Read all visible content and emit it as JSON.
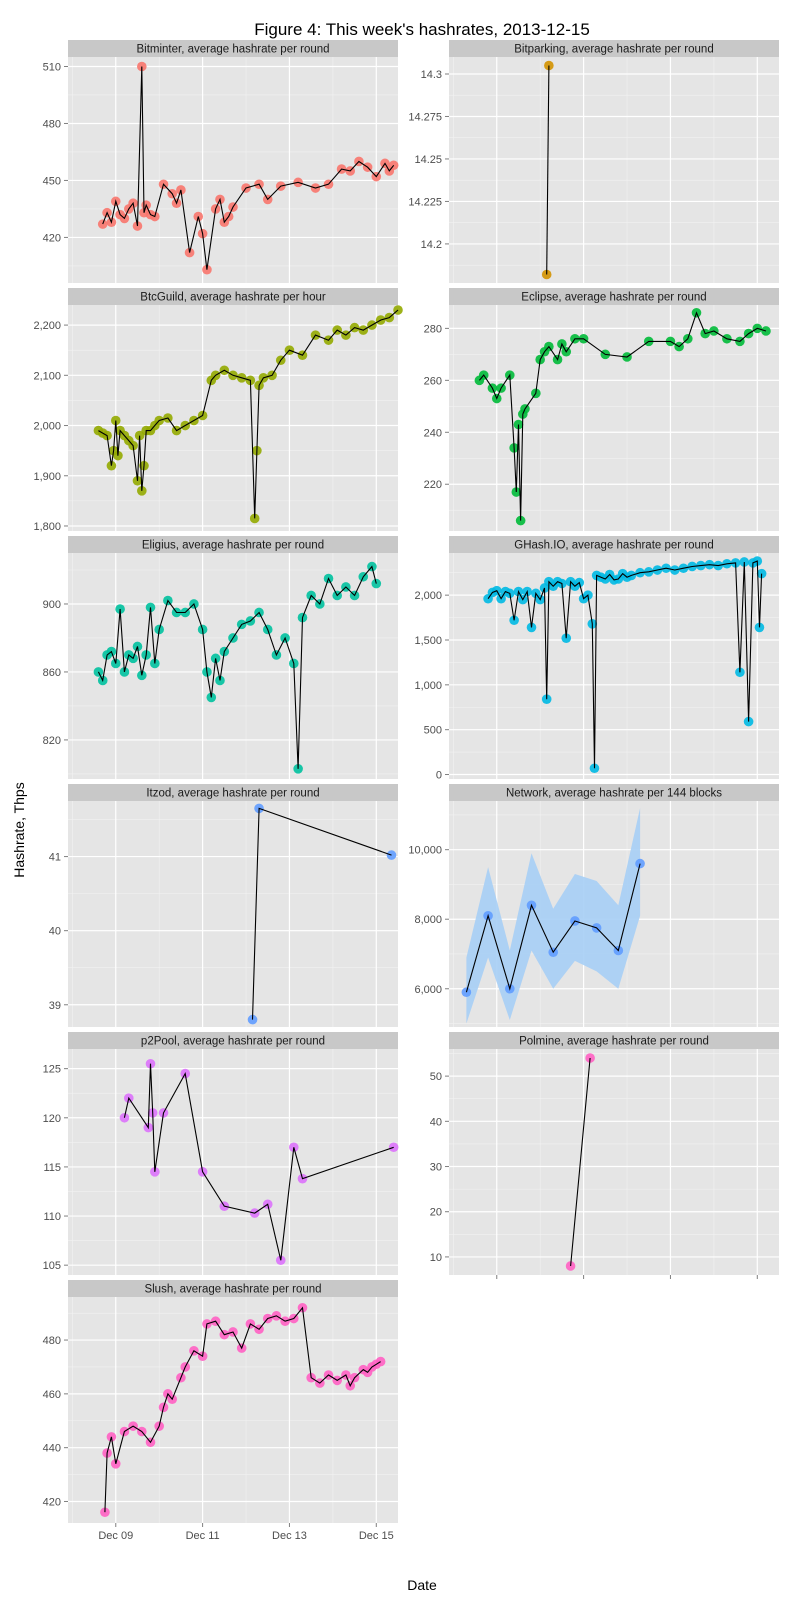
{
  "figure": {
    "title": "Figure 4: This week's hashrates, 2013-12-15",
    "xlabel": "Date",
    "ylabel": "Hashrate, Thps",
    "x_ticks": [
      "Dec 09",
      "Dec 11",
      "Dec 13",
      "Dec 15"
    ]
  },
  "chart_data": [
    {
      "type": "line",
      "title": "Bitminter, average hashrate per round",
      "color": "#F8766D",
      "xlim": [
        7.9,
        15.5
      ],
      "ylim": [
        396,
        515
      ],
      "yticks": [
        420,
        450,
        480,
        510
      ],
      "series": [
        {
          "x": [
            8.7,
            8.8,
            8.9,
            9.0,
            9.1,
            9.2,
            9.3,
            9.4,
            9.5,
            9.6,
            9.65,
            9.7,
            9.8,
            9.9,
            10.1,
            10.3,
            10.4,
            10.5,
            10.7,
            10.9,
            11.0,
            11.1,
            11.3,
            11.4,
            11.5,
            11.6,
            11.7,
            12.0,
            12.3,
            12.5,
            12.8,
            13.2,
            13.6,
            13.9,
            14.2,
            14.4,
            14.6,
            14.8,
            15.0,
            15.2,
            15.3,
            15.4
          ],
          "y": [
            427,
            433,
            428,
            439,
            432,
            430,
            435,
            438,
            426,
            510,
            433,
            437,
            432,
            431,
            448,
            443,
            438,
            445,
            412,
            431,
            422,
            403,
            435,
            440,
            428,
            431,
            436,
            446,
            448,
            440,
            447,
            449,
            446,
            448,
            456,
            455,
            460,
            457,
            452,
            459,
            455,
            458
          ]
        }
      ]
    },
    {
      "type": "line",
      "title": "Bitparking, average hashrate per round",
      "color": "#D39200",
      "xlim": [
        7.9,
        15.5
      ],
      "ylim": [
        14.177,
        14.31
      ],
      "yticks": [
        14.2,
        14.225,
        14.25,
        14.275,
        14.3
      ],
      "series": [
        {
          "x": [
            10.15,
            10.2
          ],
          "y": [
            14.182,
            14.305
          ]
        }
      ]
    },
    {
      "type": "line",
      "title": "BtcGuild, average hashrate per hour",
      "color": "#93AA00",
      "xlim": [
        7.9,
        15.5
      ],
      "ylim": [
        1790,
        2240
      ],
      "yticks": [
        1800,
        1900,
        2000,
        2100,
        2200
      ],
      "series": [
        {
          "x": [
            8.6,
            8.7,
            8.8,
            8.9,
            8.95,
            9.0,
            9.05,
            9.1,
            9.2,
            9.3,
            9.4,
            9.5,
            9.55,
            9.6,
            9.65,
            9.7,
            9.8,
            9.9,
            10.0,
            10.2,
            10.4,
            10.6,
            10.8,
            11.0,
            11.2,
            11.3,
            11.5,
            11.7,
            11.9,
            12.1,
            12.2,
            12.25,
            12.3,
            12.4,
            12.6,
            12.8,
            13.0,
            13.3,
            13.6,
            13.9,
            14.1,
            14.3,
            14.5,
            14.7,
            14.9,
            15.1,
            15.3,
            15.5
          ],
          "y": [
            1990,
            1985,
            1980,
            1920,
            1950,
            2010,
            1940,
            1990,
            1980,
            1970,
            1960,
            1890,
            1980,
            1870,
            1920,
            1990,
            1990,
            2000,
            2010,
            2015,
            1990,
            2000,
            2010,
            2020,
            2090,
            2100,
            2110,
            2100,
            2095,
            2090,
            1815,
            1950,
            2080,
            2095,
            2100,
            2130,
            2150,
            2140,
            2180,
            2170,
            2190,
            2180,
            2195,
            2190,
            2200,
            2210,
            2215,
            2230
          ]
        }
      ]
    },
    {
      "type": "line",
      "title": "Eclipse, average hashrate per round",
      "color": "#00BA38",
      "xlim": [
        7.9,
        15.5
      ],
      "ylim": [
        202,
        289
      ],
      "yticks": [
        220,
        240,
        260,
        280
      ],
      "series": [
        {
          "x": [
            8.6,
            8.7,
            8.9,
            9.0,
            9.1,
            9.3,
            9.4,
            9.45,
            9.5,
            9.55,
            9.6,
            9.65,
            9.9,
            10.0,
            10.1,
            10.2,
            10.4,
            10.5,
            10.6,
            10.8,
            11.0,
            11.5,
            12.0,
            12.5,
            13.0,
            13.2,
            13.4,
            13.6,
            13.8,
            14.0,
            14.3,
            14.6,
            14.8,
            15.0,
            15.2
          ],
          "y": [
            260,
            262,
            257,
            253,
            257,
            262,
            234,
            217,
            243,
            206,
            247,
            249,
            255,
            268,
            271,
            273,
            268,
            274,
            271,
            276,
            276,
            270,
            269,
            275,
            275,
            273,
            276,
            286,
            278,
            279,
            276,
            275,
            278,
            280,
            279
          ]
        }
      ]
    },
    {
      "type": "line",
      "title": "Eligius, average hashrate per round",
      "color": "#00C19F",
      "xlim": [
        7.9,
        15.5
      ],
      "ylim": [
        797,
        930
      ],
      "yticks": [
        820,
        860,
        900
      ],
      "series": [
        {
          "x": [
            8.6,
            8.7,
            8.8,
            8.9,
            9.0,
            9.1,
            9.2,
            9.3,
            9.4,
            9.5,
            9.6,
            9.7,
            9.8,
            9.9,
            10.0,
            10.2,
            10.4,
            10.6,
            10.8,
            11.0,
            11.1,
            11.2,
            11.3,
            11.4,
            11.5,
            11.7,
            11.9,
            12.1,
            12.3,
            12.5,
            12.7,
            12.9,
            13.1,
            13.2,
            13.3,
            13.5,
            13.7,
            13.9,
            14.1,
            14.3,
            14.5,
            14.7,
            14.9,
            15.0
          ],
          "y": [
            860,
            855,
            870,
            872,
            865,
            897,
            860,
            870,
            868,
            875,
            858,
            870,
            898,
            865,
            885,
            902,
            895,
            895,
            900,
            885,
            860,
            845,
            868,
            855,
            872,
            880,
            888,
            890,
            895,
            885,
            870,
            880,
            865,
            803,
            892,
            905,
            900,
            915,
            905,
            910,
            905,
            916,
            922,
            912
          ]
        }
      ]
    },
    {
      "type": "line",
      "title": "GHash.IO, average hashrate per round",
      "color": "#00B9E3",
      "xlim": [
        7.9,
        15.5
      ],
      "ylim": [
        -50,
        2470
      ],
      "yticks": [
        0,
        500,
        1000,
        1500,
        2000
      ],
      "series": [
        {
          "x": [
            8.8,
            8.9,
            9.0,
            9.1,
            9.2,
            9.3,
            9.4,
            9.5,
            9.6,
            9.7,
            9.8,
            9.9,
            10.0,
            10.1,
            10.15,
            10.2,
            10.3,
            10.4,
            10.5,
            10.6,
            10.7,
            10.8,
            10.9,
            11.0,
            11.1,
            11.2,
            11.25,
            11.3,
            11.4,
            11.5,
            11.6,
            11.7,
            11.8,
            11.9,
            12.0,
            12.1,
            12.3,
            12.5,
            12.7,
            12.9,
            13.1,
            13.3,
            13.5,
            13.7,
            13.9,
            14.1,
            14.3,
            14.5,
            14.6,
            14.7,
            14.8,
            14.9,
            15.0,
            15.05,
            15.1
          ],
          "y": [
            1960,
            2030,
            2050,
            1960,
            2040,
            2020,
            1720,
            2040,
            1950,
            2040,
            1640,
            2020,
            1950,
            2080,
            840,
            2150,
            2100,
            2150,
            2130,
            1520,
            2150,
            2100,
            2140,
            1960,
            2000,
            1680,
            70,
            2220,
            2200,
            2180,
            2230,
            2170,
            2180,
            2240,
            2200,
            2220,
            2250,
            2260,
            2280,
            2300,
            2280,
            2300,
            2320,
            2330,
            2340,
            2330,
            2350,
            2360,
            1140,
            2370,
            590,
            2360,
            2380,
            1640,
            2240
          ]
        }
      ]
    },
    {
      "type": "line",
      "title": "Itzod, average hashrate per round",
      "color": "#619CFF",
      "xlim": [
        7.9,
        15.5
      ],
      "ylim": [
        38.7,
        41.75
      ],
      "yticks": [
        39,
        40,
        41
      ],
      "series": [
        {
          "x": [
            12.15,
            12.3,
            15.35
          ],
          "y": [
            38.8,
            41.65,
            41.02
          ]
        }
      ]
    },
    {
      "type": "line",
      "title": "Network, average hashrate per 144 blocks",
      "color": "#619CFF",
      "xlim": [
        7.9,
        15.5
      ],
      "ylim": [
        4900,
        11400
      ],
      "yticks": [
        6000,
        8000,
        10000
      ],
      "series": [
        {
          "name": "estimate",
          "x": [
            8.3,
            8.8,
            9.3,
            9.8,
            10.3,
            10.8,
            11.3,
            11.8,
            12.3
          ],
          "y": [
            5900,
            8100,
            6000,
            8400,
            7050,
            7950,
            7750,
            7100,
            9600
          ]
        },
        {
          "name": "lower",
          "x": [
            8.3,
            8.8,
            9.3,
            9.8,
            10.3,
            10.8,
            11.3,
            11.8,
            12.3
          ],
          "y": [
            5000,
            6900,
            5100,
            7100,
            6000,
            6800,
            6500,
            6000,
            8100
          ]
        },
        {
          "name": "upper",
          "x": [
            8.3,
            8.8,
            9.3,
            9.8,
            10.3,
            10.8,
            11.3,
            11.8,
            12.3
          ],
          "y": [
            6900,
            9500,
            7100,
            9900,
            8300,
            9300,
            9100,
            8400,
            11200
          ]
        }
      ]
    },
    {
      "type": "line",
      "title": "p2Pool, average hashrate per round",
      "color": "#DB72FB",
      "xlim": [
        7.9,
        15.5
      ],
      "ylim": [
        104,
        127
      ],
      "yticks": [
        105,
        110,
        115,
        120,
        125
      ],
      "series": [
        {
          "x": [
            9.2,
            9.3,
            9.75,
            9.8,
            9.85,
            9.9,
            10.1,
            10.6,
            11.0,
            11.5,
            12.2,
            12.5,
            12.8,
            13.1,
            13.3,
            15.4
          ],
          "y": [
            120,
            122,
            119,
            125.5,
            120.5,
            114.5,
            120.5,
            124.5,
            114.5,
            111,
            110.3,
            111.2,
            105.5,
            117,
            113.8,
            117
          ]
        }
      ]
    },
    {
      "type": "line",
      "title": "Polmine, average hashrate per round",
      "color": "#FF61C3",
      "xlim": [
        7.9,
        15.5
      ],
      "ylim": [
        6,
        56
      ],
      "yticks": [
        10,
        20,
        30,
        40,
        50
      ],
      "series": [
        {
          "x": [
            10.7,
            11.15
          ],
          "y": [
            8,
            54
          ]
        }
      ]
    },
    {
      "type": "line",
      "title": "Slush, average hashrate per round",
      "color": "#FF61C3",
      "xlim": [
        7.9,
        15.5
      ],
      "ylim": [
        412,
        496
      ],
      "yticks": [
        420,
        440,
        460,
        480
      ],
      "series": [
        {
          "x": [
            8.75,
            8.8,
            8.9,
            9.0,
            9.2,
            9.4,
            9.6,
            9.8,
            10.0,
            10.1,
            10.2,
            10.3,
            10.5,
            10.6,
            10.8,
            11.0,
            11.1,
            11.3,
            11.5,
            11.7,
            11.9,
            12.1,
            12.3,
            12.5,
            12.7,
            12.9,
            13.1,
            13.3,
            13.5,
            13.7,
            13.9,
            14.1,
            14.3,
            14.4,
            14.5,
            14.7,
            14.8,
            14.9,
            15.0,
            15.1
          ],
          "y": [
            416,
            438,
            444,
            434,
            446,
            448,
            446,
            442,
            448,
            455,
            460,
            458,
            466,
            470,
            476,
            474,
            486,
            487,
            482,
            483,
            477,
            486,
            484,
            488,
            489,
            487,
            488,
            492,
            466,
            464,
            467,
            465,
            467,
            463,
            466,
            469,
            468,
            470,
            471,
            472
          ]
        }
      ]
    }
  ]
}
